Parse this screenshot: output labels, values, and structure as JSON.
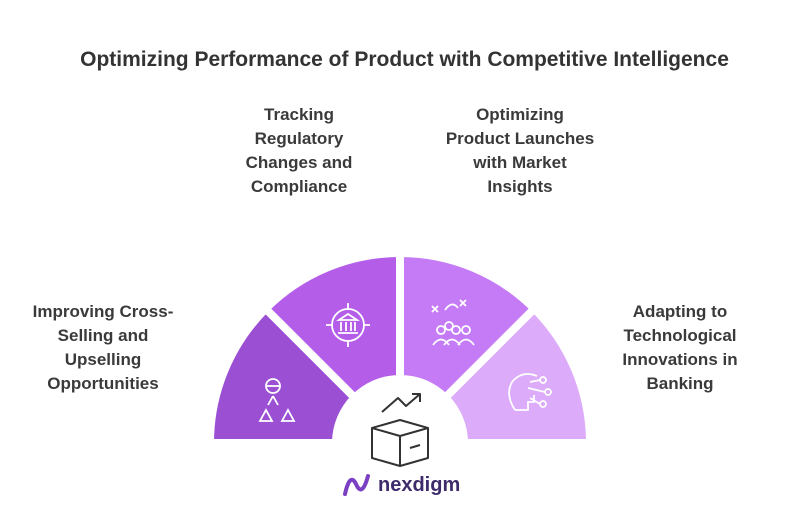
{
  "title": "Optimizing Performance of Product with Competitive Intelligence",
  "segments": [
    {
      "lines": [
        "Improving Cross-",
        "Selling and",
        "Upselling",
        "Opportunities"
      ]
    },
    {
      "lines": [
        "Tracking",
        "Regulatory",
        "Changes and",
        "Compliance"
      ]
    },
    {
      "lines": [
        "Optimizing",
        "Product Launches",
        "with Market",
        "Insights"
      ]
    },
    {
      "lines": [
        "Adapting to",
        "Technological",
        "Innovations in",
        "Banking"
      ]
    }
  ],
  "logo": "nexdigm"
}
